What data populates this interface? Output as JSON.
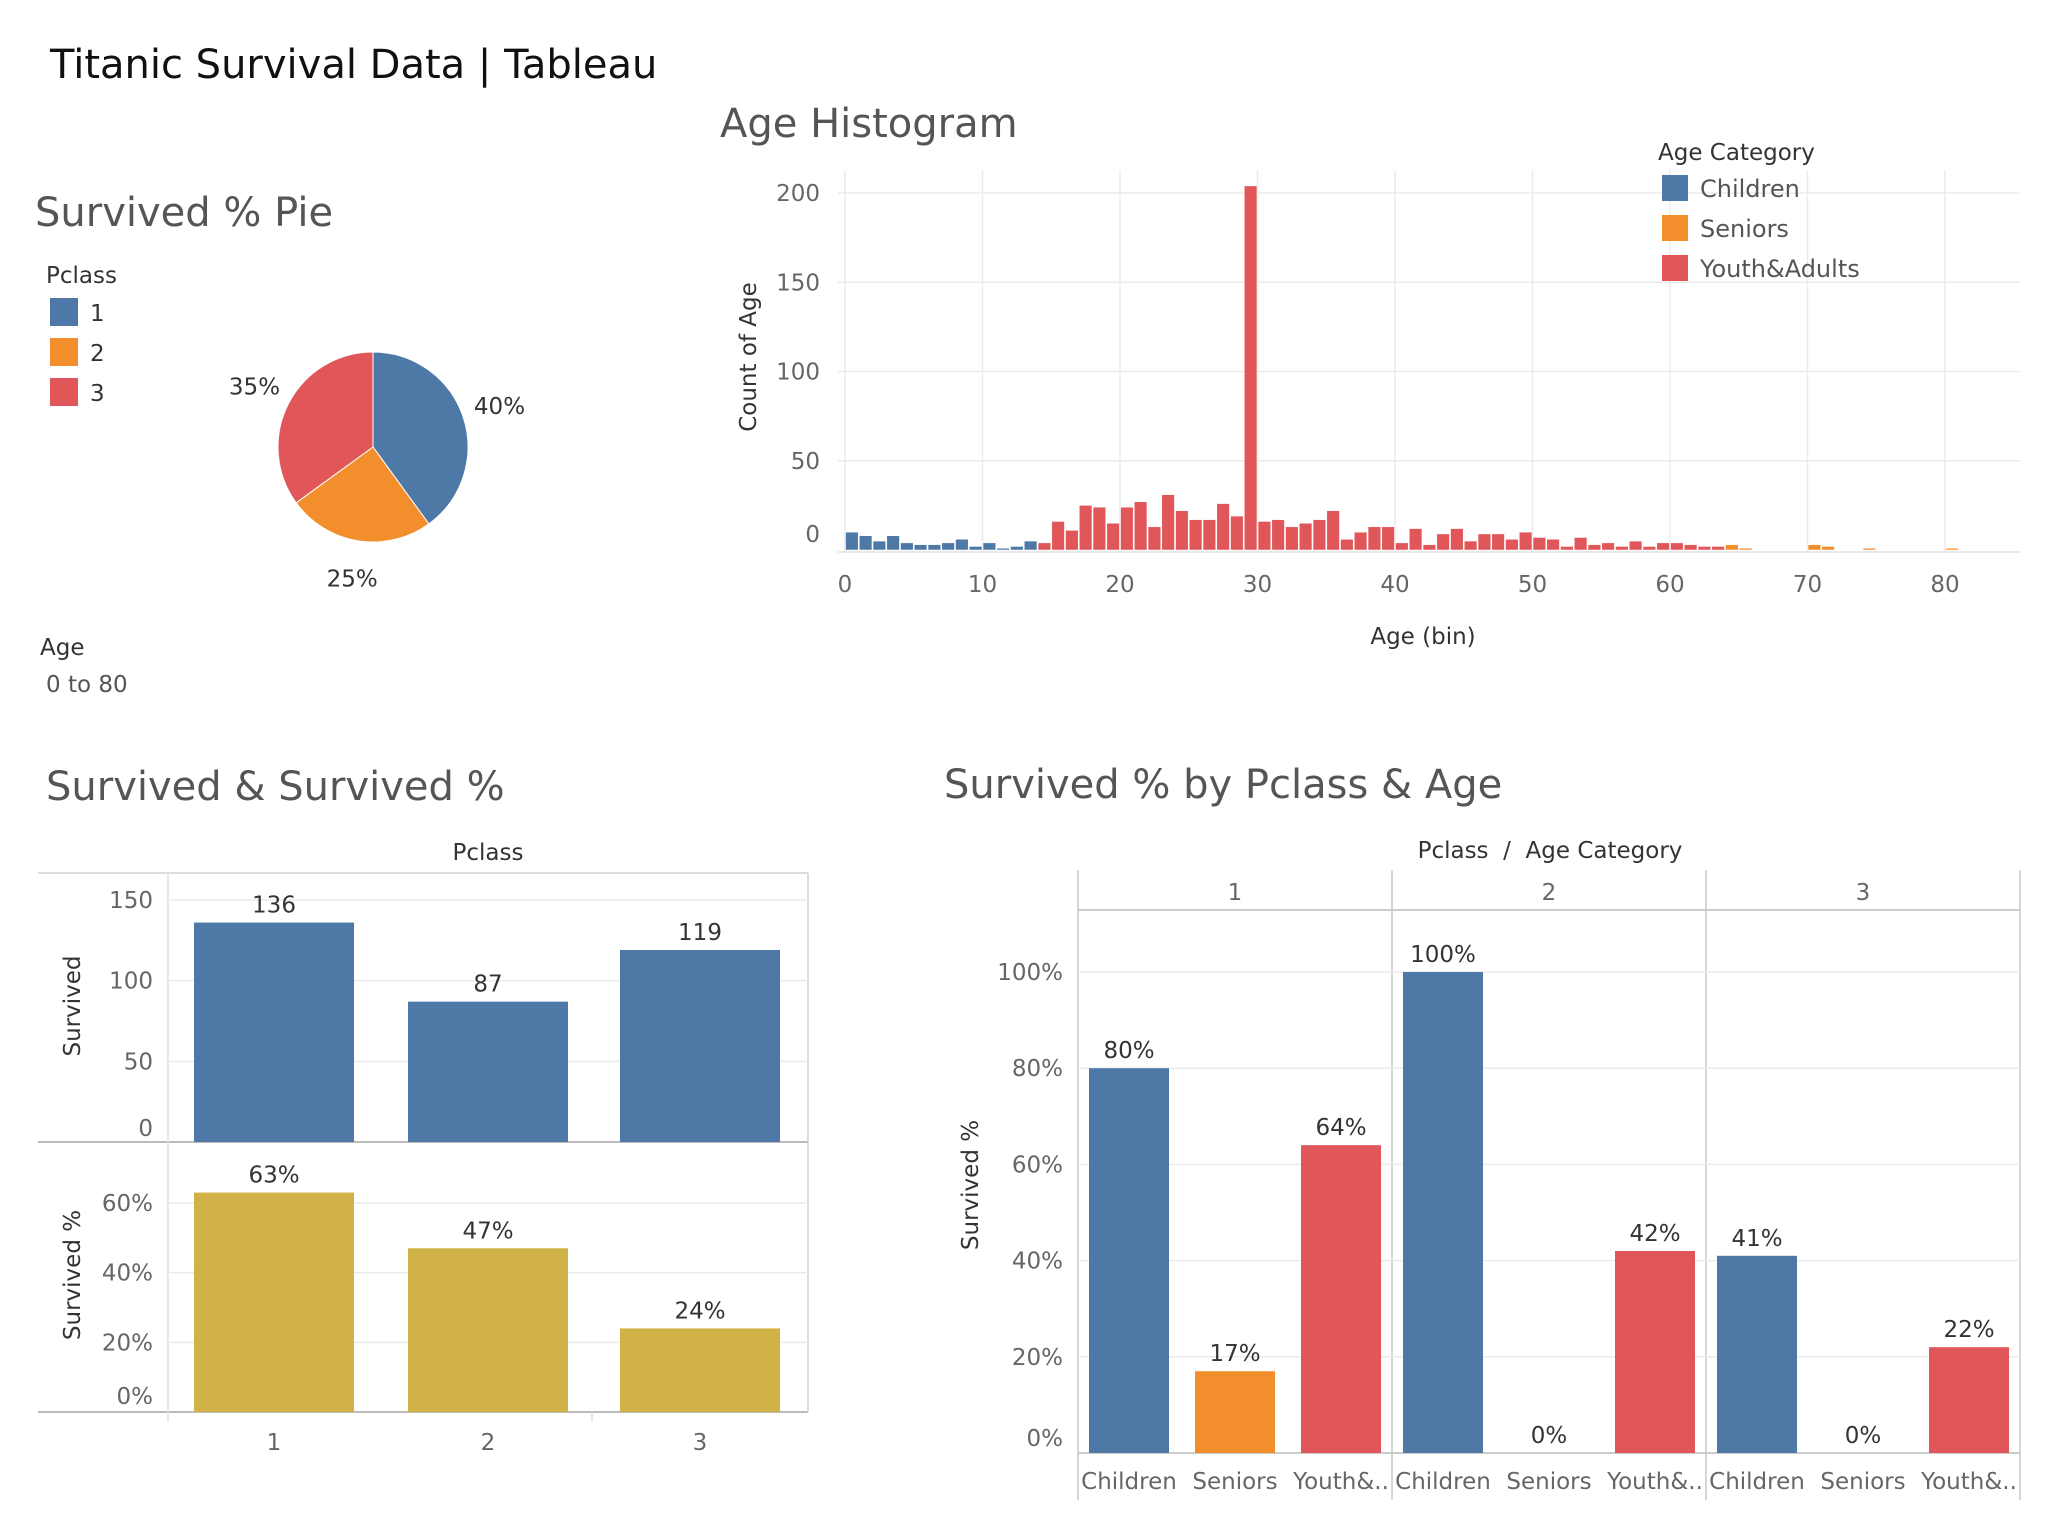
{
  "dashboard": {
    "title": "Titanic Survival Data | Tableau"
  },
  "colors": {
    "blue": "#4e79a7",
    "orange": "#f28e2b",
    "red": "#e15759",
    "gold": "#d1b246",
    "light_gray": "#c9c9c9",
    "grid": "#ebebeb",
    "axis_text": "#666666",
    "label_text": "#333333"
  },
  "filters": {
    "age_filter_title": "Age",
    "age_filter_value": "0 to 80"
  },
  "legends": {
    "pclass": {
      "title": "Pclass",
      "items": [
        {
          "label": "1",
          "color": "#4e79a7"
        },
        {
          "label": "2",
          "color": "#f28e2b"
        },
        {
          "label": "3",
          "color": "#e15759"
        }
      ]
    },
    "age_category": {
      "title": "Age Category",
      "items": [
        {
          "label": "Children",
          "color": "#4e79a7"
        },
        {
          "label": "Seniors",
          "color": "#f28e2b"
        },
        {
          "label": "Youth&Adults",
          "color": "#e15759"
        }
      ]
    }
  },
  "chart_data": [
    {
      "id": "pie",
      "type": "pie",
      "title": "Survived % Pie",
      "slices": [
        {
          "label": "1",
          "value": 40,
          "text": "40%",
          "color": "#4e79a7"
        },
        {
          "label": "2",
          "value": 25,
          "text": "25%",
          "color": "#f28e2b"
        },
        {
          "label": "3",
          "value": 35,
          "text": "35%",
          "color": "#e15759"
        }
      ]
    },
    {
      "id": "histogram",
      "type": "bar",
      "title": "Age Histogram",
      "xlabel": "Age (bin)",
      "ylabel": "Count of Age",
      "xlim": [
        0,
        85
      ],
      "ylim": [
        0,
        210
      ],
      "x_ticks": [
        "0",
        "10",
        "20",
        "30",
        "40",
        "50",
        "60",
        "70",
        "80"
      ],
      "y_ticks": [
        "0",
        "50",
        "100",
        "150",
        "200"
      ],
      "grid": true,
      "legend_placement": "top-right",
      "bins": [
        {
          "x": 0,
          "count": 10,
          "category": "Children"
        },
        {
          "x": 1,
          "count": 8,
          "category": "Children"
        },
        {
          "x": 2,
          "count": 5,
          "category": "Children"
        },
        {
          "x": 3,
          "count": 8,
          "category": "Children"
        },
        {
          "x": 4,
          "count": 4,
          "category": "Children"
        },
        {
          "x": 5,
          "count": 3,
          "category": "Children"
        },
        {
          "x": 6,
          "count": 3,
          "category": "Children"
        },
        {
          "x": 7,
          "count": 4,
          "category": "Children"
        },
        {
          "x": 8,
          "count": 6,
          "category": "Children"
        },
        {
          "x": 9,
          "count": 2,
          "category": "Children"
        },
        {
          "x": 10,
          "count": 4,
          "category": "Children"
        },
        {
          "x": 11,
          "count": 1,
          "category": "Children"
        },
        {
          "x": 12,
          "count": 2,
          "category": "Children"
        },
        {
          "x": 13,
          "count": 5,
          "category": "Children"
        },
        {
          "x": 14,
          "count": 4,
          "category": "Youth&Adults"
        },
        {
          "x": 15,
          "count": 16,
          "category": "Youth&Adults"
        },
        {
          "x": 16,
          "count": 11,
          "category": "Youth&Adults"
        },
        {
          "x": 17,
          "count": 25,
          "category": "Youth&Adults"
        },
        {
          "x": 18,
          "count": 24,
          "category": "Youth&Adults"
        },
        {
          "x": 19,
          "count": 15,
          "category": "Youth&Adults"
        },
        {
          "x": 20,
          "count": 24,
          "category": "Youth&Adults"
        },
        {
          "x": 21,
          "count": 27,
          "category": "Youth&Adults"
        },
        {
          "x": 22,
          "count": 13,
          "category": "Youth&Adults"
        },
        {
          "x": 23,
          "count": 31,
          "category": "Youth&Adults"
        },
        {
          "x": 24,
          "count": 22,
          "category": "Youth&Adults"
        },
        {
          "x": 25,
          "count": 17,
          "category": "Youth&Adults"
        },
        {
          "x": 26,
          "count": 17,
          "category": "Youth&Adults"
        },
        {
          "x": 27,
          "count": 26,
          "category": "Youth&Adults"
        },
        {
          "x": 28,
          "count": 19,
          "category": "Youth&Adults"
        },
        {
          "x": 29,
          "count": 204,
          "category": "Youth&Adults"
        },
        {
          "x": 30,
          "count": 16,
          "category": "Youth&Adults"
        },
        {
          "x": 31,
          "count": 17,
          "category": "Youth&Adults"
        },
        {
          "x": 32,
          "count": 13,
          "category": "Youth&Adults"
        },
        {
          "x": 33,
          "count": 15,
          "category": "Youth&Adults"
        },
        {
          "x": 34,
          "count": 17,
          "category": "Youth&Adults"
        },
        {
          "x": 35,
          "count": 22,
          "category": "Youth&Adults"
        },
        {
          "x": 36,
          "count": 6,
          "category": "Youth&Adults"
        },
        {
          "x": 37,
          "count": 10,
          "category": "Youth&Adults"
        },
        {
          "x": 38,
          "count": 13,
          "category": "Youth&Adults"
        },
        {
          "x": 39,
          "count": 13,
          "category": "Youth&Adults"
        },
        {
          "x": 40,
          "count": 4,
          "category": "Youth&Adults"
        },
        {
          "x": 41,
          "count": 12,
          "category": "Youth&Adults"
        },
        {
          "x": 42,
          "count": 3,
          "category": "Youth&Adults"
        },
        {
          "x": 43,
          "count": 9,
          "category": "Youth&Adults"
        },
        {
          "x": 44,
          "count": 12,
          "category": "Youth&Adults"
        },
        {
          "x": 45,
          "count": 5,
          "category": "Youth&Adults"
        },
        {
          "x": 46,
          "count": 9,
          "category": "Youth&Adults"
        },
        {
          "x": 47,
          "count": 9,
          "category": "Youth&Adults"
        },
        {
          "x": 48,
          "count": 6,
          "category": "Youth&Adults"
        },
        {
          "x": 49,
          "count": 10,
          "category": "Youth&Adults"
        },
        {
          "x": 50,
          "count": 7,
          "category": "Youth&Adults"
        },
        {
          "x": 51,
          "count": 6,
          "category": "Youth&Adults"
        },
        {
          "x": 52,
          "count": 2,
          "category": "Youth&Adults"
        },
        {
          "x": 53,
          "count": 7,
          "category": "Youth&Adults"
        },
        {
          "x": 54,
          "count": 3,
          "category": "Youth&Adults"
        },
        {
          "x": 55,
          "count": 4,
          "category": "Youth&Adults"
        },
        {
          "x": 56,
          "count": 2,
          "category": "Youth&Adults"
        },
        {
          "x": 57,
          "count": 5,
          "category": "Youth&Adults"
        },
        {
          "x": 58,
          "count": 2,
          "category": "Youth&Adults"
        },
        {
          "x": 59,
          "count": 4,
          "category": "Youth&Adults"
        },
        {
          "x": 60,
          "count": 4,
          "category": "Youth&Adults"
        },
        {
          "x": 61,
          "count": 3,
          "category": "Youth&Adults"
        },
        {
          "x": 62,
          "count": 2,
          "category": "Youth&Adults"
        },
        {
          "x": 63,
          "count": 2,
          "category": "Youth&Adults"
        },
        {
          "x": 64,
          "count": 3,
          "category": "Seniors"
        },
        {
          "x": 65,
          "count": 1,
          "category": "Seniors"
        },
        {
          "x": 70,
          "count": 3,
          "category": "Seniors"
        },
        {
          "x": 71,
          "count": 2,
          "category": "Seniors"
        },
        {
          "x": 74,
          "count": 1,
          "category": "Seniors"
        },
        {
          "x": 80,
          "count": 1,
          "category": "Seniors"
        }
      ]
    },
    {
      "id": "survived_counts",
      "type": "bar",
      "title": "Survived & Survived %",
      "column_header": "Pclass",
      "categories": [
        "1",
        "2",
        "3"
      ],
      "ylabel": "Survived",
      "ylim": [
        0,
        160
      ],
      "y_ticks": [
        "0",
        "50",
        "100",
        "150"
      ],
      "values": [
        136,
        87,
        119
      ],
      "labels": [
        "136",
        "87",
        "119"
      ],
      "color": "#4e79a7"
    },
    {
      "id": "survived_pct",
      "type": "bar",
      "categories": [
        "1",
        "2",
        "3"
      ],
      "ylabel": "Survived %",
      "ylim": [
        0,
        70
      ],
      "y_ticks": [
        "0%",
        "20%",
        "40%",
        "60%"
      ],
      "values": [
        63,
        47,
        24
      ],
      "labels": [
        "63%",
        "47%",
        "24%"
      ],
      "color": "#d1b246"
    },
    {
      "id": "pclass_age",
      "type": "bar",
      "title": "Survived % by Pclass & Age",
      "column_header": "Pclass  /  Age Category",
      "ylabel": "Survived %",
      "ylim": [
        0,
        120
      ],
      "y_ticks": [
        "0%",
        "20%",
        "40%",
        "60%",
        "80%",
        "100%"
      ],
      "panels": [
        {
          "pclass": "1",
          "categories": [
            "Children",
            "Seniors",
            "Youth&.."
          ],
          "values": [
            80,
            17,
            64
          ],
          "labels": [
            "80%",
            "17%",
            "64%"
          ]
        },
        {
          "pclass": "2",
          "categories": [
            "Children",
            "Seniors",
            "Youth&.."
          ],
          "values": [
            100,
            0,
            42
          ],
          "labels": [
            "100%",
            "0%",
            "42%"
          ]
        },
        {
          "pclass": "3",
          "categories": [
            "Children",
            "Seniors",
            "Youth&.."
          ],
          "values": [
            41,
            0,
            22
          ],
          "labels": [
            "41%",
            "0%",
            "22%"
          ]
        }
      ],
      "series_colors": [
        "#4e79a7",
        "#f28e2b",
        "#e15759"
      ]
    }
  ]
}
